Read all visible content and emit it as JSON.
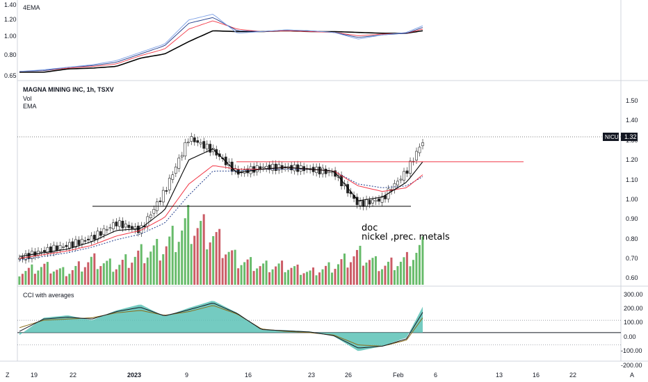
{
  "panes": {
    "top": {
      "title": "4EMA",
      "y_ticks": [
        "1.40",
        "1.20",
        "1.00",
        "0.80",
        "0.65"
      ]
    },
    "main": {
      "symbol": "MAGNA MINING INC, 1h, TSXV",
      "vol_label": "Vol",
      "ema_label": "EMA",
      "y_ticks": [
        "1.50",
        "1.40",
        "1.30",
        "1.20",
        "1.10",
        "1.00",
        "0.90",
        "0.80",
        "0.70",
        "0.60"
      ],
      "price_ticker": "NICU",
      "price_value": "1.32",
      "annotation_line1": "doc",
      "annotation_line2": "nickel ,prec. metals"
    },
    "cci": {
      "title": "CCI with averages",
      "y_ticks": [
        "300.00",
        "200.00",
        "100.00",
        "0.00",
        "-100.00",
        "-200.00"
      ]
    }
  },
  "time_axis": {
    "labels": [
      "19",
      "22",
      "2023",
      "9",
      "16",
      "23",
      "26",
      "Feb",
      "6",
      "13",
      "16",
      "22"
    ],
    "left_corner": "Z",
    "right_corner": "A"
  },
  "colors": {
    "up": "#26a69a",
    "down": "#222222",
    "ema_fast": "#000000",
    "ema_mid": "#f23645",
    "ema_slow": "#1e3a8a",
    "cci_fill": "#5cc2b6",
    "vol_up": "#4caf50",
    "vol_down": "#c2404b",
    "resistance": "#f23645",
    "support": "#000000"
  },
  "chart_data": [
    {
      "type": "line",
      "title": "4EMA",
      "ylim": [
        0.63,
        1.45
      ],
      "x": [
        0,
        6,
        12,
        18,
        24,
        30,
        36,
        42,
        48,
        54,
        60,
        66,
        72,
        78,
        84,
        90,
        96,
        100
      ],
      "series": [
        {
          "values": [
            0.68,
            0.68,
            0.72,
            0.73,
            0.75,
            0.85,
            0.9,
            1.05,
            1.18,
            1.17,
            1.17,
            1.18,
            1.17,
            1.17,
            1.16,
            1.15,
            1.15,
            1.18
          ]
        },
        {
          "values": [
            0.69,
            0.7,
            0.73,
            0.75,
            0.78,
            0.88,
            0.96,
            1.2,
            1.3,
            1.2,
            1.17,
            1.18,
            1.17,
            1.16,
            1.12,
            1.14,
            1.15,
            1.2
          ]
        },
        {
          "values": [
            0.69,
            0.7,
            0.74,
            0.76,
            0.8,
            0.9,
            1.0,
            1.27,
            1.34,
            1.18,
            1.17,
            1.19,
            1.18,
            1.16,
            1.1,
            1.13,
            1.15,
            1.22
          ]
        },
        {
          "values": [
            0.69,
            0.71,
            0.74,
            0.77,
            0.82,
            0.92,
            1.02,
            1.31,
            1.38,
            1.15,
            1.17,
            1.19,
            1.18,
            1.16,
            1.08,
            1.13,
            1.16,
            1.24
          ]
        }
      ]
    },
    {
      "type": "bar",
      "title": "MAGNA MINING INC, 1h, TSXV",
      "ylim": [
        0.57,
        1.55
      ],
      "x": [
        0,
        6,
        12,
        18,
        24,
        30,
        36,
        42,
        48,
        54,
        60,
        66,
        72,
        78,
        84,
        90,
        96,
        100
      ],
      "close": [
        0.69,
        0.73,
        0.76,
        0.8,
        0.88,
        0.84,
        1.05,
        1.34,
        1.27,
        1.15,
        1.18,
        1.18,
        1.17,
        1.15,
        0.98,
        1.01,
        1.16,
        1.32
      ],
      "ema_fast": [
        0.7,
        0.72,
        0.74,
        0.78,
        0.84,
        0.85,
        0.95,
        1.22,
        1.28,
        1.15,
        1.17,
        1.18,
        1.17,
        1.16,
        1.0,
        1.02,
        1.1,
        1.21
      ],
      "ema_mid": [
        0.69,
        0.71,
        0.73,
        0.76,
        0.81,
        0.84,
        0.91,
        1.09,
        1.19,
        1.17,
        1.17,
        1.18,
        1.17,
        1.16,
        1.08,
        1.05,
        1.07,
        1.14
      ],
      "ema_slow": [
        0.68,
        0.7,
        0.72,
        0.75,
        0.79,
        0.82,
        0.88,
        1.03,
        1.16,
        1.16,
        1.17,
        1.17,
        1.17,
        1.16,
        1.09,
        1.07,
        1.08,
        1.13
      ],
      "volume": [
        2,
        3,
        2,
        4,
        3,
        5,
        6,
        10,
        8,
        4,
        3,
        3,
        2,
        3,
        5,
        3,
        4,
        6
      ],
      "resistance": 1.21,
      "support": 0.97
    },
    {
      "type": "area",
      "title": "CCI with averages",
      "ylim": [
        -220,
        320
      ],
      "x": [
        0,
        6,
        12,
        18,
        24,
        30,
        36,
        42,
        48,
        54,
        60,
        66,
        72,
        78,
        84,
        90,
        96,
        100
      ],
      "values": [
        -20,
        120,
        140,
        100,
        180,
        230,
        130,
        200,
        260,
        160,
        20,
        20,
        10,
        -30,
        -150,
        -110,
        -40,
        210
      ],
      "averages": [
        40,
        100,
        110,
        120,
        160,
        180,
        140,
        170,
        220,
        150,
        30,
        10,
        0,
        -20,
        -100,
        -110,
        -60,
        120
      ],
      "ref_lines": [
        100,
        0,
        -100
      ]
    }
  ]
}
